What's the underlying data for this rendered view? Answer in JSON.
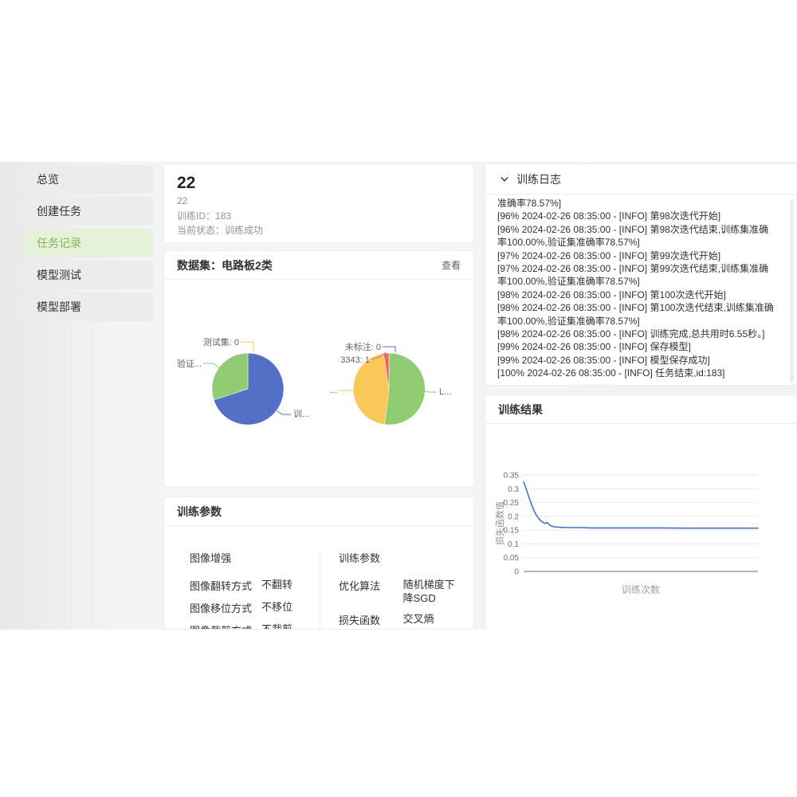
{
  "sidebar": {
    "items": [
      {
        "label": "总览",
        "active": false
      },
      {
        "label": "创建任务",
        "active": false
      },
      {
        "label": "任务记录",
        "active": true
      },
      {
        "label": "模型测试",
        "active": false
      },
      {
        "label": "模型部署",
        "active": false
      }
    ]
  },
  "task_header": {
    "title": "22",
    "name": "22",
    "training_id": "训练ID：183",
    "status": "当前状态：训练成功"
  },
  "dataset_card": {
    "title": "数据集：电路板2类",
    "view_button": "查看"
  },
  "params_card": {
    "title": "训练参数",
    "groups": [
      {
        "title": "图像增强",
        "rows": [
          {
            "label": "图像翻转方式",
            "value": "不翻转"
          },
          {
            "label": "图像移位方式",
            "value": "不移位"
          },
          {
            "label": "图像裁剪方式",
            "value": "不裁剪"
          }
        ]
      },
      {
        "title": "训练参数",
        "rows": [
          {
            "label": "优化算法",
            "value": "随机梯度下降SGD"
          },
          {
            "label": "损失函数",
            "value": "交叉熵"
          }
        ]
      }
    ]
  },
  "log_card": {
    "title": "训练日志",
    "collapse_icon": "chevron-down",
    "lines": [
      "准确率78.57%]",
      "[96% 2024-02-26 08:35:00 - [INFO] 第98次迭代开始]",
      "[96% 2024-02-26 08:35:00 - [INFO] 第98次迭代结束,训练集准确率100.00%,验证集准确率78.57%]",
      "[97% 2024-02-26 08:35:00 - [INFO] 第99次迭代开始]",
      "[97% 2024-02-26 08:35:00 - [INFO] 第99次迭代结束,训练集准确率100.00%,验证集准确率78.57%]",
      "[98% 2024-02-26 08:35:00 - [INFO] 第100次迭代开始]",
      "[98% 2024-02-26 08:35:00 - [INFO] 第100次迭代结束,训练集准确率100.00%,验证集准确率78.57%]",
      "[98% 2024-02-26 08:35:00 - [INFO] 训练完成,总共用时6.55秒。]",
      "[99% 2024-02-26 08:35:00 - [INFO] 保存模型]",
      "[99% 2024-02-26 08:35:00 - [INFO] 模型保存成功]",
      "[100% 2024-02-26 08:35:00 - [INFO] 任务结束,id:183]"
    ]
  },
  "result_card": {
    "title": "训练结果"
  },
  "chart_data": [
    {
      "type": "pie",
      "name": "dataset-split-pie",
      "slices": [
        {
          "label": "训练集",
          "display": "训...",
          "fraction": 0.7,
          "color": "#5470C6",
          "label_at": [
            147,
            111
          ],
          "anchor": "start",
          "leader": [
            [
              126,
              103
            ],
            [
              133,
              108
            ],
            [
              144,
              108
            ]
          ]
        },
        {
          "label": "验证集",
          "display": "验证...",
          "fraction": 0.3,
          "color": "#91CC75",
          "label_at": [
            32,
            48
          ],
          "anchor": "end",
          "leader": [
            [
              54,
              50
            ],
            [
              47,
              44
            ],
            [
              34,
              44
            ]
          ]
        },
        {
          "label": "测试集",
          "display": "测试集: 0",
          "value": 0,
          "fraction": 0,
          "color": "#FAC858",
          "label_at": [
            79,
            21
          ],
          "anchor": "end",
          "leader": [
            [
              81,
              17
            ],
            [
              97,
              17
            ],
            [
              97,
              29
            ]
          ]
        }
      ]
    },
    {
      "type": "pie",
      "name": "annotation-distribution-pie",
      "slices": [
        {
          "display": "L...",
          "fraction": 0.52,
          "color": "#91CC75",
          "label_at": [
            153,
            83
          ],
          "anchor": "start",
          "leader": [
            [
              135,
              79
            ],
            [
              141,
              80
            ],
            [
              150,
              80
            ]
          ]
        },
        {
          "display": "...",
          "fraction": 0.456,
          "color": "#FAC858",
          "label_at": [
            25,
            81
          ],
          "anchor": "end",
          "leader": [
            [
              45,
              77
            ],
            [
              38,
              78
            ],
            [
              27,
              78
            ]
          ]
        },
        {
          "display": "3343: 1",
          "value": 1,
          "fraction": 0.024,
          "color": "#EE6666",
          "label_at": [
            66,
            43
          ],
          "anchor": "end",
          "leader": [
            [
              86,
              30
            ],
            [
              78,
              36
            ],
            [
              68,
              39
            ]
          ]
        },
        {
          "label": "未标注",
          "display": "未标注: 0",
          "value": 0,
          "fraction": 0,
          "color": "#5470C6",
          "label_at": [
            80,
            27
          ],
          "anchor": "end",
          "leader": [
            [
              82,
              23
            ],
            [
              98,
              23
            ],
            [
              98,
              30
            ]
          ]
        }
      ]
    },
    {
      "type": "line",
      "name": "loss-curve",
      "xlabel": "训练次数",
      "ylabel": "损失函数值",
      "ylim": [
        0,
        0.35
      ],
      "yticks": [
        0,
        0.05,
        0.1,
        0.15,
        0.2,
        0.25,
        0.3,
        0.35
      ],
      "xlim": [
        1,
        100
      ],
      "grid": true,
      "color": "#4a6fc5",
      "points": [
        [
          1,
          0.325
        ],
        [
          2,
          0.302
        ],
        [
          3,
          0.276
        ],
        [
          4,
          0.251
        ],
        [
          5,
          0.228
        ],
        [
          6,
          0.21
        ],
        [
          7,
          0.196
        ],
        [
          8,
          0.186
        ],
        [
          9,
          0.179
        ],
        [
          10,
          0.174
        ],
        [
          11,
          0.178
        ],
        [
          12,
          0.168
        ],
        [
          13,
          0.164
        ],
        [
          14,
          0.162
        ],
        [
          15,
          0.161
        ],
        [
          17,
          0.16
        ],
        [
          20,
          0.159
        ],
        [
          25,
          0.159
        ],
        [
          30,
          0.158
        ],
        [
          40,
          0.158
        ],
        [
          50,
          0.158
        ],
        [
          60,
          0.158
        ],
        [
          70,
          0.157
        ],
        [
          80,
          0.157
        ],
        [
          90,
          0.157
        ],
        [
          100,
          0.157
        ]
      ]
    }
  ]
}
